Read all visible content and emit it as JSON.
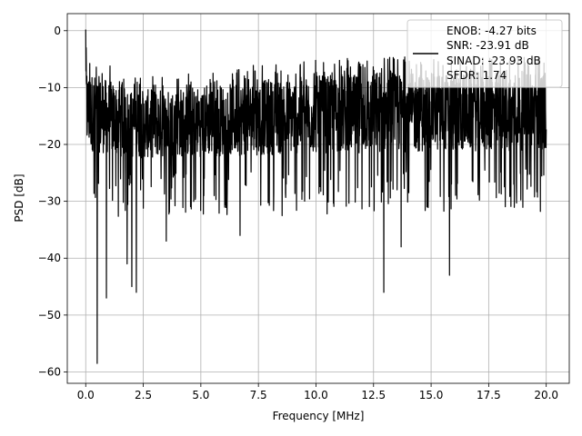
{
  "chart_data": {
    "type": "line",
    "xlabel": "Frequency [MHz]",
    "ylabel": "PSD [dB]",
    "xlim": [
      -0.8,
      21.0
    ],
    "ylim": [
      -62,
      3
    ],
    "xticks": [
      0.0,
      2.5,
      5.0,
      7.5,
      10.0,
      12.5,
      15.0,
      17.5,
      20.0
    ],
    "xtick_labels": [
      "0.0",
      "2.5",
      "5.0",
      "7.5",
      "10.0",
      "12.5",
      "15.0",
      "17.5",
      "20.0"
    ],
    "yticks": [
      0,
      -10,
      -20,
      -30,
      -40,
      -50,
      -60
    ],
    "ytick_labels": [
      "0",
      "−10",
      "−20",
      "−30",
      "−40",
      "−50",
      "−60"
    ],
    "grid": true,
    "legend_position": "top-right",
    "legend": {
      "lines": [
        "ENOB: -4.27 bits",
        "SNR: -23.91 dB",
        "SINAD: -23.93 dB",
        "SFDR: 1.74"
      ]
    },
    "series": [
      {
        "color": "#000000",
        "x_range": [
          0,
          20
        ],
        "points": 2048,
        "mean_db": -16.8,
        "upper_envelope": [
          [
            0,
            -4
          ],
          [
            2,
            -8
          ],
          [
            5,
            -7
          ],
          [
            10,
            -5
          ],
          [
            20,
            -4
          ]
        ],
        "lower_envelope": [
          [
            0,
            -24
          ],
          [
            2,
            -25
          ],
          [
            20,
            -24
          ]
        ],
        "peaks": [
          [
            0.0,
            0.2
          ],
          [
            0.02,
            -3
          ],
          [
            0.05,
            -8
          ]
        ],
        "deep_nulls": [
          [
            0.5,
            -58.5
          ],
          [
            0.9,
            -47
          ],
          [
            1.8,
            -41
          ],
          [
            2.0,
            -45
          ],
          [
            2.2,
            -46
          ],
          [
            3.5,
            -37
          ],
          [
            6.7,
            -36
          ],
          [
            12.95,
            -46
          ],
          [
            15.8,
            -43
          ],
          [
            13.7,
            -38
          ]
        ]
      }
    ]
  }
}
